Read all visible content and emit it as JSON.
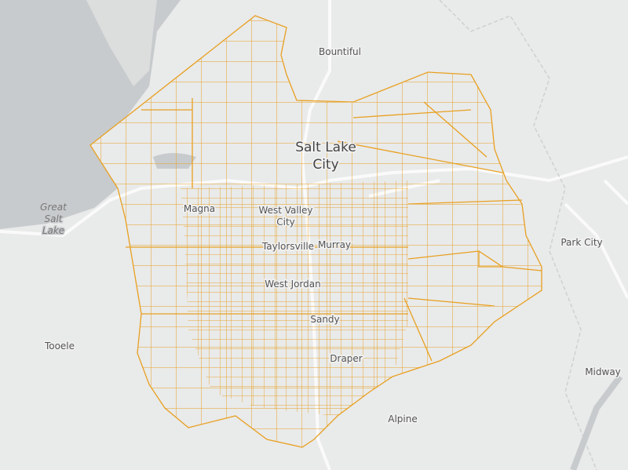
{
  "map": {
    "places": [
      {
        "lines": [
          "Bountiful"
        ]
      },
      {
        "lines": [
          "Salt Lake",
          "City"
        ]
      },
      {
        "lines": [
          "Great",
          "Salt",
          "Lake"
        ]
      },
      {
        "lines": [
          "Magna"
        ]
      },
      {
        "lines": [
          "West Valley",
          "City"
        ]
      },
      {
        "lines": [
          "Taylorsville"
        ]
      },
      {
        "lines": [
          "Murray"
        ]
      },
      {
        "lines": [
          "West Jordan"
        ]
      },
      {
        "lines": [
          "Sandy"
        ]
      },
      {
        "lines": [
          "Draper"
        ]
      },
      {
        "lines": [
          "Alpine"
        ]
      },
      {
        "lines": [
          "Tooele"
        ]
      },
      {
        "lines": [
          "Park City"
        ]
      },
      {
        "lines": [
          "Midway"
        ]
      }
    ]
  }
}
